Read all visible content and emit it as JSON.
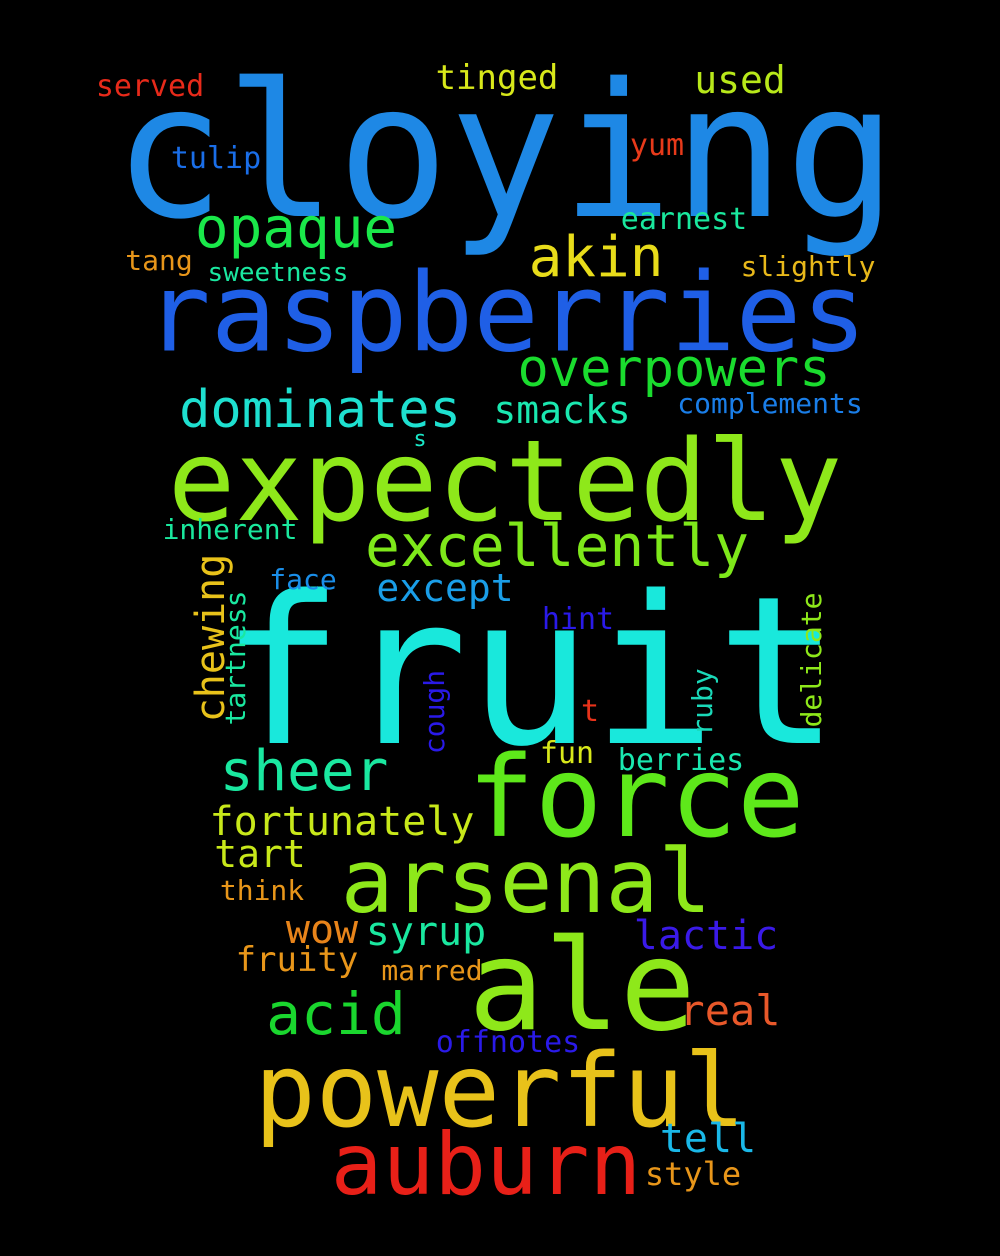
{
  "words": [
    {
      "text": "cloying",
      "color": "#1e88e5"
    },
    {
      "text": "raspberries",
      "color": "#1f5fe6"
    },
    {
      "text": "fruit",
      "color": "#19e8dc"
    },
    {
      "text": "expectedly",
      "color": "#8ee81a"
    },
    {
      "text": "force",
      "color": "#5ee81a"
    },
    {
      "text": "arsenal",
      "color": "#8ee81a"
    },
    {
      "text": "ale",
      "color": "#8ee81a"
    },
    {
      "text": "powerful",
      "color": "#e8c21a"
    },
    {
      "text": "auburn",
      "color": "#e82018"
    },
    {
      "text": "excellently",
      "color": "#7ee81a"
    },
    {
      "text": "overpowers",
      "color": "#1adc2e"
    },
    {
      "text": "dominates",
      "color": "#1ee0d0"
    },
    {
      "text": "opaque",
      "color": "#1ae84a"
    },
    {
      "text": "akin",
      "color": "#e8dc1a"
    },
    {
      "text": "sheer",
      "color": "#1ae8a0"
    },
    {
      "text": "acid",
      "color": "#1ad62e"
    },
    {
      "text": "fortunately",
      "color": "#c8e81a"
    },
    {
      "text": "smacks",
      "color": "#1ae8b0"
    },
    {
      "text": "except",
      "color": "#1a9ee8"
    },
    {
      "text": "chewing",
      "color": "#e8c21a"
    },
    {
      "text": "syrup",
      "color": "#1ae8a0"
    },
    {
      "text": "lactic",
      "color": "#3a1ae8"
    },
    {
      "text": "wow",
      "color": "#e8841a"
    },
    {
      "text": "real",
      "color": "#e8582a"
    },
    {
      "text": "tell",
      "color": "#1ab8e8"
    },
    {
      "text": "tart",
      "color": "#c8e81a"
    },
    {
      "text": "used",
      "color": "#b8e81a"
    },
    {
      "text": "tinged",
      "color": "#d8e81a"
    },
    {
      "text": "served",
      "color": "#e82a1a"
    },
    {
      "text": "tulip",
      "color": "#1a6ee8"
    },
    {
      "text": "yum",
      "color": "#e83a1a"
    },
    {
      "text": "earnest",
      "color": "#1ae89e"
    },
    {
      "text": "tang",
      "color": "#e8961a"
    },
    {
      "text": "sweetness",
      "color": "#1ae8a0"
    },
    {
      "text": "slightly",
      "color": "#e8b81a"
    },
    {
      "text": "complements",
      "color": "#1a7ee8"
    },
    {
      "text": "s",
      "color": "#1ae8c8"
    },
    {
      "text": "inherent",
      "color": "#1ae89e"
    },
    {
      "text": "face",
      "color": "#1a8ee8"
    },
    {
      "text": "hint",
      "color": "#2a1ae8"
    },
    {
      "text": "tartness",
      "color": "#1ae8a0"
    },
    {
      "text": "delicate",
      "color": "#8ee81a"
    },
    {
      "text": "cough",
      "color": "#2a1ae8"
    },
    {
      "text": "ruby",
      "color": "#1ad8b8"
    },
    {
      "text": "t",
      "color": "#e8321a"
    },
    {
      "text": "fun",
      "color": "#d8e81a"
    },
    {
      "text": "berries",
      "color": "#1ae8b0"
    },
    {
      "text": "think",
      "color": "#e8961a"
    },
    {
      "text": "fruity",
      "color": "#e8961a"
    },
    {
      "text": "marred",
      "color": "#e8961a"
    },
    {
      "text": "offnotes",
      "color": "#2a1ae8"
    },
    {
      "text": "style",
      "color": "#e8961a"
    }
  ]
}
